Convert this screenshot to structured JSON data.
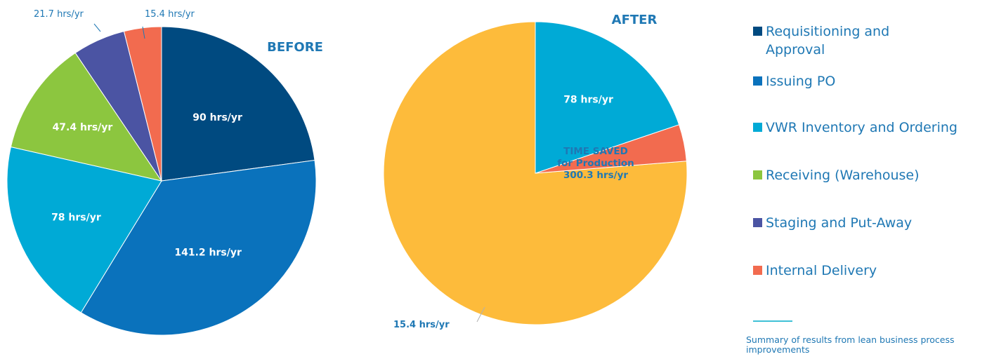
{
  "chart_data": [
    {
      "type": "pie",
      "title": "BEFORE",
      "unit": "hrs/yr",
      "slices": [
        {
          "name": "Requisitioning and Approval",
          "value": 90,
          "label": "90 hrs/yr",
          "color": "#004a80"
        },
        {
          "name": "Issuing PO",
          "value": 141.2,
          "label": "141.2 hrs/yr",
          "color": "#0a72bc"
        },
        {
          "name": "VWR Inventory and Ordering",
          "value": 78,
          "label": "78 hrs/yr",
          "color": "#00aad6"
        },
        {
          "name": "Receiving (Warehouse)",
          "value": 47.4,
          "label": "47.4 hrs/yr",
          "color": "#8cc63f"
        },
        {
          "name": "Staging and Put-Away",
          "value": 21.7,
          "label": "21.7 hrs/yr",
          "color": "#4b54a3"
        },
        {
          "name": "Internal Delivery",
          "value": 15.4,
          "label": "15.4 hrs/yr",
          "color": "#f26b4f"
        }
      ]
    },
    {
      "type": "pie",
      "title": "AFTER",
      "unit": "hrs/yr",
      "slices": [
        {
          "name": "TIME SAVED for Production",
          "value": 300.3,
          "label": [
            "TIME SAVED",
            "for Production",
            "300.3 hrs/yr"
          ],
          "color": "#fdbb3b"
        },
        {
          "name": "Internal Delivery",
          "value": 15.4,
          "label": "15.4 hrs/yr",
          "color": "#f26b4f"
        },
        {
          "name": "VWR Inventory and Ordering",
          "value": 78,
          "label": "78 hrs/yr",
          "color": "#00aad6"
        }
      ]
    }
  ],
  "legend": [
    {
      "label": "Requisitioning and Approval",
      "color": "#004a80"
    },
    {
      "label": "Issuing PO",
      "color": "#0a72bc"
    },
    {
      "label": "VWR Inventory and Ordering",
      "color": "#00aad6"
    },
    {
      "label": "Receiving (Warehouse)",
      "color": "#8cc63f"
    },
    {
      "label": "Staging and Put-Away",
      "color": "#4b54a3"
    },
    {
      "label": "Internal Delivery",
      "color": "#f26b4f"
    }
  ],
  "caption": "Summary of results from lean business process improvements"
}
